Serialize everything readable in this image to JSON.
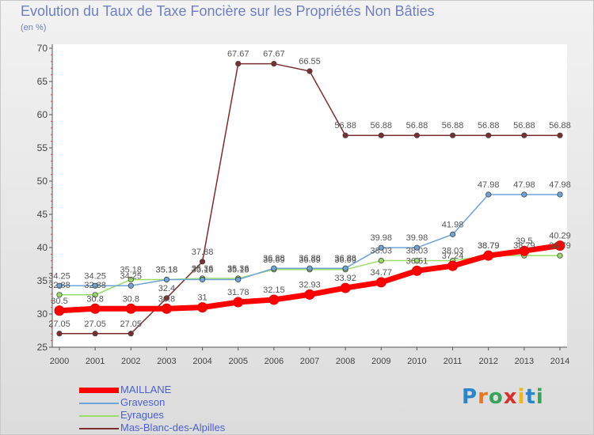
{
  "chart_data": {
    "type": "line",
    "title": "Evolution du Taux de Taxe Foncière sur les Propriétés Non Bâties",
    "subtitle": "(en %)",
    "x": [
      "2000",
      "2001",
      "2002",
      "2003",
      "2004",
      "2005",
      "2006",
      "2007",
      "2008",
      "2009",
      "2010",
      "2011",
      "2012",
      "2013",
      "2014"
    ],
    "ylim": [
      25,
      70
    ],
    "yticks": [
      25,
      30,
      35,
      40,
      45,
      50,
      55,
      60,
      65,
      70
    ],
    "grid": false,
    "legend_position": "bottom-left",
    "series": [
      {
        "name": "MAILLANE",
        "color": "#ff0000",
        "values": [
          30.5,
          30.8,
          30.8,
          30.8,
          31,
          31.78,
          32.15,
          32.93,
          33.92,
          34.77,
          36.51,
          37.24,
          38.79,
          39.5,
          40.29
        ],
        "labels": [
          "30.5",
          "30.8",
          "30.8",
          "30.8",
          "31",
          "31.78",
          "32.15",
          "32.93",
          "33.92",
          "34.77",
          "36.51",
          "37.24",
          "38.79",
          "39.5",
          "40.29"
        ]
      },
      {
        "name": "Graveson",
        "color": "#6fa3d8",
        "values": [
          34.25,
          34.25,
          34.25,
          35.18,
          35.18,
          35.18,
          36.88,
          36.88,
          36.88,
          39.98,
          39.98,
          41.98,
          47.98,
          47.98,
          47.98
        ],
        "labels": [
          "34.25",
          "34.25",
          "34.25",
          "35.18",
          "35.18",
          "35.18",
          "36.88",
          "36.88",
          "36.88",
          "39.98",
          "39.98",
          "41.98",
          "47.98",
          "47.98",
          "47.98"
        ]
      },
      {
        "name": "Eyragues",
        "color": "#99dd66",
        "values": [
          32.88,
          32.88,
          35.18,
          35.18,
          35.36,
          35.36,
          36.69,
          36.69,
          36.69,
          38.03,
          38.03,
          38.03,
          38.79,
          38.79,
          38.79
        ],
        "labels": [
          "32.88",
          "32.88",
          "35.18",
          "35.18",
          "35.36",
          "35.36",
          "36.69",
          "36.69",
          "36.69",
          "38.03",
          "38.03",
          "38.03",
          "38.79",
          "38.79",
          "38.79"
        ]
      },
      {
        "name": "Mas-Blanc-des-Alpilles",
        "color": "#7a2e2e",
        "values": [
          27.05,
          27.05,
          27.05,
          32.4,
          37.88,
          67.67,
          67.67,
          66.55,
          56.88,
          56.88,
          56.88,
          56.88,
          56.88,
          56.88,
          56.88
        ],
        "labels": [
          "27.05",
          "27.05",
          "27.05",
          "32.4",
          "37.88",
          "67.67",
          "67.67",
          "66.55",
          "56.88",
          "56.88",
          "56.88",
          "56.88",
          "56.88",
          "56.88",
          "56.88"
        ]
      }
    ]
  },
  "legend": {
    "items": [
      "MAILLANE",
      "Graveson",
      "Eyragues",
      "Mas-Blanc-des-Alpilles"
    ]
  },
  "logo": {
    "text": "Proxiti",
    "letters": [
      "P",
      "r",
      "o",
      "x",
      "i",
      "t",
      "i"
    ],
    "colors": [
      "#2a86c9",
      "#e8781e",
      "#3aa35a",
      "#d6322c",
      "#e8b81e",
      "#2a86c9",
      "#3aa35a"
    ]
  }
}
